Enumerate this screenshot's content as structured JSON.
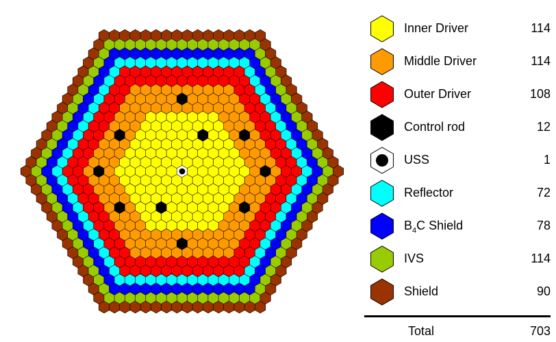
{
  "core_map": {
    "regions": [
      {
        "key": "inner",
        "color": "#ffff00",
        "count": 114
      },
      {
        "key": "middle",
        "color": "#ff9a00",
        "count": 114
      },
      {
        "key": "outer",
        "color": "#ff0000",
        "count": 108
      },
      {
        "key": "control",
        "color": "#000000",
        "count": 12
      },
      {
        "key": "uss",
        "color": "#ffffff",
        "count": 1
      },
      {
        "key": "reflector",
        "color": "#00ffff",
        "count": 72
      },
      {
        "key": "b4c",
        "color": "#0000ff",
        "count": 78
      },
      {
        "key": "ivs",
        "color": "#99cc00",
        "count": 114
      },
      {
        "key": "shield",
        "color": "#993300",
        "count": 90
      }
    ]
  },
  "legend": {
    "items": [
      {
        "label": "Inner Driver",
        "count": "114",
        "color": "#ffff00"
      },
      {
        "label": "Middle Driver",
        "count": "114",
        "color": "#ff9a00"
      },
      {
        "label": "Outer Driver",
        "count": "108",
        "color": "#ff0000"
      },
      {
        "label": "Control rod",
        "count": "12",
        "color": "#000000"
      },
      {
        "label": "USS",
        "count": "1",
        "color": "#ffffff"
      },
      {
        "label_main": "B",
        "label_sub": "4",
        "label_rest": "C Shield",
        "count": "78",
        "color": "#0000ff"
      },
      {
        "label": "IVS",
        "count": "114",
        "color": "#99cc00"
      },
      {
        "label": "Shield",
        "count": "90",
        "color": "#993300"
      }
    ],
    "reflector": {
      "label": "Reflector",
      "count": "72",
      "color": "#00ffff"
    },
    "total_label": "Total",
    "total_count": "703"
  }
}
